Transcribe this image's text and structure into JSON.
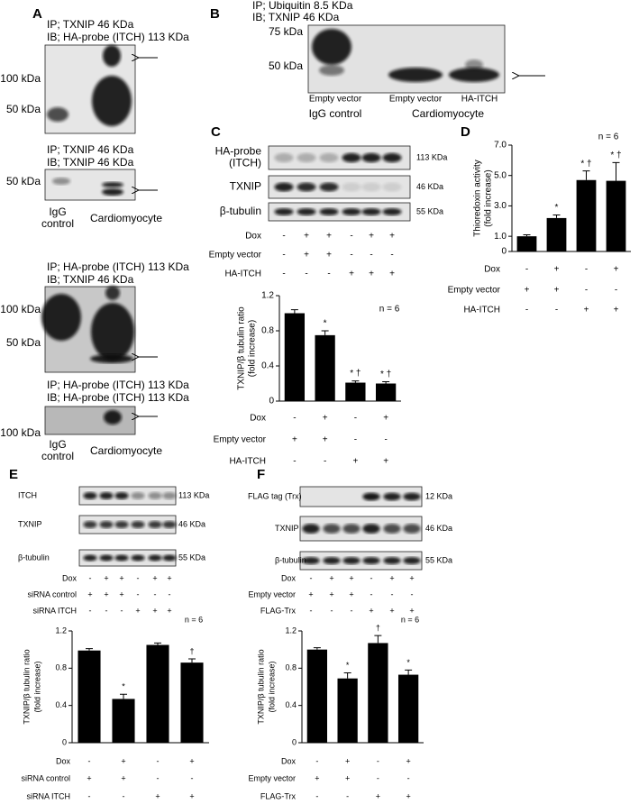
{
  "panels": {
    "A": {
      "letter": "A",
      "blots": [
        {
          "header": [
            "IP; TXNIP 46 KDa",
            "IB; HA-probe (ITCH) 113 KDa"
          ],
          "markers": [
            "100 kDa",
            "50 kDa"
          ]
        },
        {
          "header": [
            "IP; TXNIP 46 KDa",
            "IB; TXNIP 46 KDa"
          ],
          "markers": [
            "50 kDa"
          ],
          "lanes": [
            [
              "IgG",
              "control"
            ],
            "Cardiomyocyte"
          ]
        },
        {
          "header": [
            "IP; HA-probe (ITCH) 113 KDa",
            "IB; TXNIP 46 KDa"
          ],
          "markers": [
            "100 kDa",
            "50 kDa"
          ]
        },
        {
          "header": [
            "IP; HA-probe (ITCH) 113 KDa",
            "IB; HA-probe (ITCH) 113 KDa"
          ],
          "markers": [
            "100 kDa"
          ],
          "lanes": [
            [
              "IgG",
              "control"
            ],
            "Cardiomyocyte"
          ]
        }
      ]
    },
    "B": {
      "letter": "B",
      "header": [
        "IP; Ubiquitin 8.5 KDa",
        "IB; TXNIP 46 KDa"
      ],
      "markers": [
        "75 kDa",
        "50 kDa"
      ],
      "lanes": [
        "Empty vector",
        "Empty vector",
        "HA-ITCH"
      ],
      "groups": [
        "IgG control",
        "Cardiomyocyte"
      ]
    },
    "C": {
      "letter": "C",
      "rows": [
        {
          "label": [
            "HA-probe",
            "(ITCH)"
          ],
          "size": "113 KDa"
        },
        {
          "label": [
            "TXNIP"
          ],
          "size": "46 KDa"
        },
        {
          "label": [
            "β-tubulin"
          ],
          "size": "55 KDa"
        }
      ],
      "conditions": [
        {
          "label": "Dox",
          "signs": [
            "-",
            "+",
            "+",
            "-",
            "+",
            "+"
          ]
        },
        {
          "label": "Empty vector",
          "signs": [
            "-",
            "+",
            "+",
            "-",
            "-",
            "-"
          ]
        },
        {
          "label": "HA-ITCH",
          "signs": [
            "-",
            "-",
            "-",
            "+",
            "+",
            "+"
          ]
        }
      ]
    },
    "D": {
      "letter": "D"
    },
    "E": {
      "letter": "E",
      "rows": [
        {
          "label": [
            "ITCH"
          ],
          "size": "113 KDa"
        },
        {
          "label": [
            "TXNIP"
          ],
          "size": "46 KDa"
        },
        {
          "label": [
            "β-tubulin"
          ],
          "size": "55 KDa"
        }
      ],
      "conditions": [
        {
          "label": "Dox",
          "signs": [
            "-",
            "+",
            "+",
            "-",
            "+",
            "+"
          ]
        },
        {
          "label": "siRNA control",
          "signs": [
            "+",
            "+",
            "+",
            "-",
            "-",
            "-"
          ]
        },
        {
          "label": "siRNA ITCH",
          "signs": [
            "-",
            "-",
            "-",
            "+",
            "+",
            "+"
          ]
        }
      ]
    },
    "F": {
      "letter": "F",
      "rows": [
        {
          "label": [
            "FLAG tag (Trx)"
          ],
          "size": "12 KDa"
        },
        {
          "label": [
            "TXNIP"
          ],
          "size": "46 KDa"
        },
        {
          "label": [
            "β-tubulin"
          ],
          "size": "55 KDa"
        }
      ],
      "conditions": [
        {
          "label": "Dox",
          "signs": [
            "-",
            "+",
            "+",
            "-",
            "+",
            "+"
          ]
        },
        {
          "label": "Empty vector",
          "signs": [
            "+",
            "+",
            "+",
            "-",
            "-",
            "-"
          ]
        },
        {
          "label": "FLAG-Trx",
          "signs": [
            "-",
            "-",
            "-",
            "+",
            "+",
            "+"
          ]
        }
      ]
    }
  },
  "chart_data": [
    {
      "type": "bar",
      "ylabel": [
        "TXNIP/β tubulin ratio",
        "(fold increase)"
      ],
      "note": "n = 6",
      "color": "#000000",
      "values": [
        1.0,
        0.75,
        0.21,
        0.2
      ],
      "errors": [
        0.04,
        0.05,
        0.02,
        0.02
      ],
      "annotations": [
        null,
        "*",
        "* †",
        "* †"
      ],
      "ylim": [
        0,
        1.2
      ],
      "yticks": [
        0,
        0.4,
        0.8,
        1.2
      ],
      "conditions": [
        {
          "label": "Dox",
          "signs": [
            "-",
            "+",
            "-",
            "+"
          ]
        },
        {
          "label": "Empty vector",
          "signs": [
            "+",
            "+",
            "-",
            "-"
          ]
        },
        {
          "label": "HA-ITCH",
          "signs": [
            "-",
            "-",
            "+",
            "+"
          ]
        }
      ]
    },
    {
      "type": "bar",
      "ylabel": [
        "Thioredoxin activity",
        "(fold increase)"
      ],
      "note": "n = 6",
      "color": "#000000",
      "values": [
        1.0,
        2.2,
        4.7,
        4.65
      ],
      "errors": [
        0.1,
        0.2,
        0.6,
        1.2
      ],
      "annotations": [
        null,
        "*",
        "* †",
        "* †"
      ],
      "ylim": [
        0,
        7
      ],
      "yticks": [
        0,
        {
          "value": 1,
          "label": "1.0"
        },
        {
          "value": 3,
          "label": "3.0"
        },
        {
          "value": 5,
          "label": "5.0"
        },
        {
          "value": 7,
          "label": "7.0"
        }
      ],
      "conditions": [
        {
          "label": "Dox",
          "signs": [
            "-",
            "+",
            "-",
            "+"
          ]
        },
        {
          "label": "Empty vector",
          "signs": [
            "+",
            "+",
            "-",
            "-"
          ]
        },
        {
          "label": "HA-ITCH",
          "signs": [
            "-",
            "-",
            "+",
            "+"
          ]
        }
      ]
    },
    {
      "type": "bar",
      "ylabel": [
        "TXNIP/β tubulin ratio",
        "(fold increase)"
      ],
      "note": "n = 6",
      "color": "#000000",
      "values": [
        0.99,
        0.47,
        1.05,
        0.86
      ],
      "errors": [
        0.02,
        0.05,
        0.02,
        0.04
      ],
      "annotations": [
        null,
        "*",
        null,
        "†"
      ],
      "ylim": [
        0,
        1.2
      ],
      "yticks": [
        0,
        0.4,
        0.8,
        1.2
      ],
      "conditions": [
        {
          "label": "Dox",
          "signs": [
            "-",
            "+",
            "-",
            "+"
          ]
        },
        {
          "label": "siRNA control",
          "signs": [
            "+",
            "+",
            "-",
            "-"
          ]
        },
        {
          "label": "siRNA ITCH",
          "signs": [
            "-",
            "-",
            "+",
            "+"
          ]
        }
      ]
    },
    {
      "type": "bar",
      "ylabel": [
        "TXNIP/β tubulin ratio",
        "(fold increase)"
      ],
      "note": "n = 6",
      "color": "#000000",
      "values": [
        1.0,
        0.69,
        1.07,
        0.73
      ],
      "errors": [
        0.02,
        0.06,
        0.08,
        0.05
      ],
      "annotations": [
        null,
        "*",
        "†",
        "*"
      ],
      "ylim": [
        0,
        1.2
      ],
      "yticks": [
        0,
        0.4,
        0.8,
        1.2
      ],
      "conditions": [
        {
          "label": "Dox",
          "signs": [
            "-",
            "+",
            "-",
            "+"
          ]
        },
        {
          "label": "Empty vector",
          "signs": [
            "+",
            "+",
            "-",
            "-"
          ]
        },
        {
          "label": "FLAG-Trx",
          "signs": [
            "-",
            "-",
            "+",
            "+"
          ]
        }
      ]
    }
  ]
}
